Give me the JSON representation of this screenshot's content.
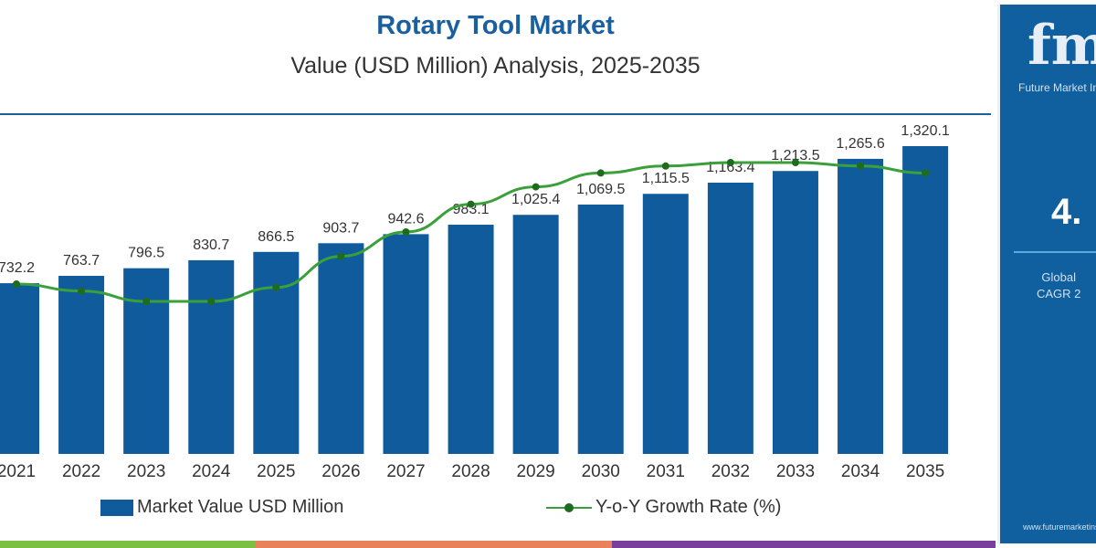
{
  "chart_data": {
    "type": "bar",
    "title": "Rotary Tool Market",
    "subtitle": "Value (USD Million) Analysis, 2025-2035",
    "categories": [
      "2021",
      "2022",
      "2023",
      "2024",
      "2025",
      "2026",
      "2027",
      "2028",
      "2029",
      "2030",
      "2031",
      "2032",
      "2033",
      "2034",
      "2035"
    ],
    "series": [
      {
        "name": "Market Value USD Million",
        "type": "bar",
        "values": [
          732.2,
          763.7,
          796.5,
          830.7,
          866.5,
          903.7,
          942.6,
          983.1,
          1025.4,
          1069.5,
          1115.5,
          1163.4,
          1213.5,
          1265.6,
          1320.1
        ],
        "labels": [
          "732.2",
          "763.7",
          "796.5",
          "830.7",
          "866.5",
          "903.7",
          "942.6",
          "983.1",
          "1,025.4",
          "1,069.5",
          "1,115.5",
          "1,163.4",
          "1,213.5",
          "1,265.6",
          "1,320.1"
        ],
        "color": "#105b9c"
      },
      {
        "name": "Y-o-Y Growth Rate (%)",
        "type": "line",
        "values": [
          4.285,
          4.283,
          4.28,
          4.28,
          4.284,
          4.293,
          4.3,
          4.308,
          4.313,
          4.317,
          4.319,
          4.32,
          4.32,
          4.319,
          4.317
        ],
        "color": "#3aa03a"
      }
    ],
    "ylim": [
      0,
      1400
    ],
    "grid": false,
    "legend": "bottom"
  },
  "panel": {
    "logo": "fmi",
    "logo_text": "Future Market Insights",
    "cagr": "4.",
    "caption_1": "Global",
    "caption_2": "CAGR 2",
    "url": "www.futuremarketinsights.com"
  }
}
